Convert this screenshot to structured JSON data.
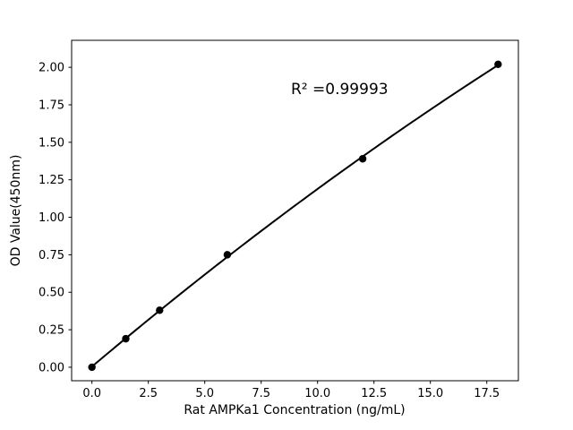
{
  "chart_data": {
    "type": "scatter",
    "title": "",
    "xlabel": "Rat AMPKa1 Concentration (ng/mL)",
    "ylabel": "OD Value(450nm)",
    "annotation": "R² =0.99993",
    "x": [
      0.0,
      1.5,
      3.0,
      6.0,
      12.0,
      18.0
    ],
    "y": [
      0.0,
      0.19,
      0.38,
      0.75,
      1.39,
      2.02
    ],
    "xticks": [
      0.0,
      2.5,
      5.0,
      7.5,
      10.0,
      12.5,
      15.0,
      17.5
    ],
    "yticks": [
      0.0,
      0.25,
      0.5,
      0.75,
      1.0,
      1.25,
      1.5,
      1.75,
      2.0
    ],
    "xlim": [
      -0.9,
      18.9
    ],
    "ylim": [
      -0.09,
      2.18
    ],
    "fit": "quadratic",
    "grid": false,
    "legend": "none",
    "line_color": "#000000",
    "marker_color": "#000000",
    "background": "#ffffff"
  }
}
